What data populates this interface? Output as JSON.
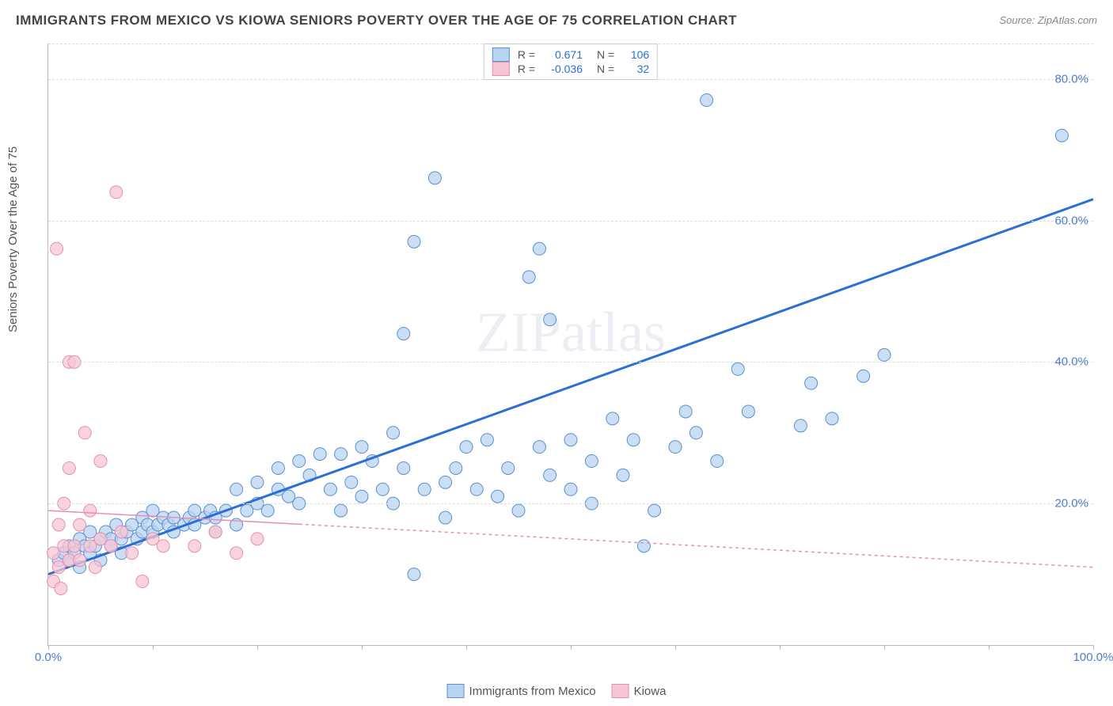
{
  "title": "IMMIGRANTS FROM MEXICO VS KIOWA SENIORS POVERTY OVER THE AGE OF 75 CORRELATION CHART",
  "source": "Source: ZipAtlas.com",
  "ylabel": "Seniors Poverty Over the Age of 75",
  "watermark": "ZIPatlas",
  "chart": {
    "type": "scatter",
    "xlim": [
      0,
      100
    ],
    "ylim": [
      0,
      85
    ],
    "yticks": [
      20,
      40,
      60,
      80
    ],
    "ytick_labels": [
      "20.0%",
      "40.0%",
      "60.0%",
      "80.0%"
    ],
    "xtick_positions": [
      0,
      10,
      20,
      30,
      40,
      50,
      60,
      70,
      80,
      90,
      100
    ],
    "xticks_labeled": [
      0,
      100
    ],
    "xtick_labels": [
      "0.0%",
      "100.0%"
    ],
    "ytick_color": "#4a7ec9",
    "xtick_color": "#4a7ec9",
    "grid_color": "#dddddd",
    "background_color": "#ffffff",
    "series": [
      {
        "name": "Immigrants from Mexico",
        "marker_fill": "#b8d4f0",
        "marker_stroke": "#5a8fd0",
        "marker_radius": 8,
        "marker_opacity": 0.75,
        "line_color": "#2a6fd6",
        "line_width": 3,
        "line_dash": "none",
        "R": "0.671",
        "N": "106",
        "regression": {
          "x1": 0,
          "y1": 10,
          "x2": 100,
          "y2": 63
        },
        "points": [
          [
            1,
            12
          ],
          [
            1.5,
            13
          ],
          [
            2,
            14
          ],
          [
            2,
            12
          ],
          [
            2.5,
            13
          ],
          [
            3,
            11
          ],
          [
            3,
            15
          ],
          [
            3.5,
            14
          ],
          [
            4,
            13
          ],
          [
            4,
            16
          ],
          [
            4.5,
            14
          ],
          [
            5,
            15
          ],
          [
            5,
            12
          ],
          [
            5.5,
            16
          ],
          [
            6,
            15
          ],
          [
            6,
            14
          ],
          [
            6.5,
            17
          ],
          [
            7,
            15
          ],
          [
            7,
            13
          ],
          [
            7.5,
            16
          ],
          [
            8,
            17
          ],
          [
            8.5,
            15
          ],
          [
            9,
            16
          ],
          [
            9,
            18
          ],
          [
            9.5,
            17
          ],
          [
            10,
            16
          ],
          [
            10,
            19
          ],
          [
            10.5,
            17
          ],
          [
            11,
            18
          ],
          [
            11.5,
            17
          ],
          [
            12,
            18
          ],
          [
            12,
            16
          ],
          [
            13,
            17
          ],
          [
            13.5,
            18
          ],
          [
            14,
            17
          ],
          [
            14,
            19
          ],
          [
            15,
            18
          ],
          [
            15.5,
            19
          ],
          [
            16,
            18
          ],
          [
            16,
            16
          ],
          [
            17,
            19
          ],
          [
            18,
            17
          ],
          [
            18,
            22
          ],
          [
            19,
            19
          ],
          [
            20,
            20
          ],
          [
            20,
            23
          ],
          [
            21,
            19
          ],
          [
            22,
            22
          ],
          [
            22,
            25
          ],
          [
            23,
            21
          ],
          [
            24,
            26
          ],
          [
            24,
            20
          ],
          [
            25,
            24
          ],
          [
            26,
            27
          ],
          [
            27,
            22
          ],
          [
            28,
            19
          ],
          [
            28,
            27
          ],
          [
            29,
            23
          ],
          [
            30,
            28
          ],
          [
            30,
            21
          ],
          [
            31,
            26
          ],
          [
            32,
            22
          ],
          [
            33,
            30
          ],
          [
            33,
            20
          ],
          [
            34,
            25
          ],
          [
            34,
            44
          ],
          [
            35,
            57
          ],
          [
            35,
            10
          ],
          [
            36,
            22
          ],
          [
            37,
            66
          ],
          [
            38,
            18
          ],
          [
            38,
            23
          ],
          [
            39,
            25
          ],
          [
            40,
            28
          ],
          [
            41,
            22
          ],
          [
            42,
            29
          ],
          [
            43,
            21
          ],
          [
            44,
            25
          ],
          [
            45,
            19
          ],
          [
            46,
            52
          ],
          [
            47,
            28
          ],
          [
            47,
            56
          ],
          [
            48,
            24
          ],
          [
            50,
            22
          ],
          [
            50,
            29
          ],
          [
            52,
            26
          ],
          [
            52,
            20
          ],
          [
            54,
            32
          ],
          [
            55,
            24
          ],
          [
            56,
            29
          ],
          [
            57,
            14
          ],
          [
            58,
            19
          ],
          [
            60,
            28
          ],
          [
            61,
            33
          ],
          [
            62,
            30
          ],
          [
            63,
            77
          ],
          [
            64,
            26
          ],
          [
            66,
            39
          ],
          [
            67,
            33
          ],
          [
            72,
            31
          ],
          [
            73,
            37
          ],
          [
            75,
            32
          ],
          [
            78,
            38
          ],
          [
            80,
            41
          ],
          [
            97,
            72
          ],
          [
            48,
            46
          ]
        ]
      },
      {
        "name": "Kiowa",
        "marker_fill": "#f7c6d4",
        "marker_stroke": "#e68fb0",
        "marker_radius": 8,
        "marker_opacity": 0.75,
        "line_color": "#e68fb0",
        "line_width": 1.5,
        "line_dash": "4,4",
        "line_solid_until_x": 24,
        "R": "-0.036",
        "N": "32",
        "regression": {
          "x1": 0,
          "y1": 19,
          "x2": 100,
          "y2": 11
        },
        "points": [
          [
            0.5,
            9
          ],
          [
            0.5,
            13
          ],
          [
            0.8,
            56
          ],
          [
            1,
            11
          ],
          [
            1,
            17
          ],
          [
            1.2,
            8
          ],
          [
            1.5,
            20
          ],
          [
            1.5,
            14
          ],
          [
            2,
            12
          ],
          [
            2,
            25
          ],
          [
            2,
            40
          ],
          [
            2.5,
            14
          ],
          [
            2.5,
            40
          ],
          [
            3,
            17
          ],
          [
            3,
            12
          ],
          [
            3.5,
            30
          ],
          [
            4,
            14
          ],
          [
            4,
            19
          ],
          [
            4.5,
            11
          ],
          [
            5,
            26
          ],
          [
            5,
            15
          ],
          [
            6,
            14
          ],
          [
            6.5,
            64
          ],
          [
            7,
            16
          ],
          [
            8,
            13
          ],
          [
            9,
            9
          ],
          [
            10,
            15
          ],
          [
            11,
            14
          ],
          [
            14,
            14
          ],
          [
            16,
            16
          ],
          [
            18,
            13
          ],
          [
            20,
            15
          ]
        ]
      }
    ],
    "legend_top": {
      "rows": [
        {
          "swatch_fill": "#b8d4f0",
          "swatch_stroke": "#5a8fd0",
          "r_label": "R =",
          "r_val": "0.671",
          "n_label": "N =",
          "n_val": "106",
          "val_color": "#2a6fd6"
        },
        {
          "swatch_fill": "#f7c6d4",
          "swatch_stroke": "#e68fb0",
          "r_label": "R =",
          "r_val": "-0.036",
          "n_label": "N =",
          "n_val": "32",
          "val_color": "#2a6fd6"
        }
      ]
    },
    "legend_bottom": [
      {
        "swatch_fill": "#b8d4f0",
        "swatch_stroke": "#5a8fd0",
        "label": "Immigrants from Mexico"
      },
      {
        "swatch_fill": "#f7c6d4",
        "swatch_stroke": "#e68fb0",
        "label": "Kiowa"
      }
    ]
  }
}
